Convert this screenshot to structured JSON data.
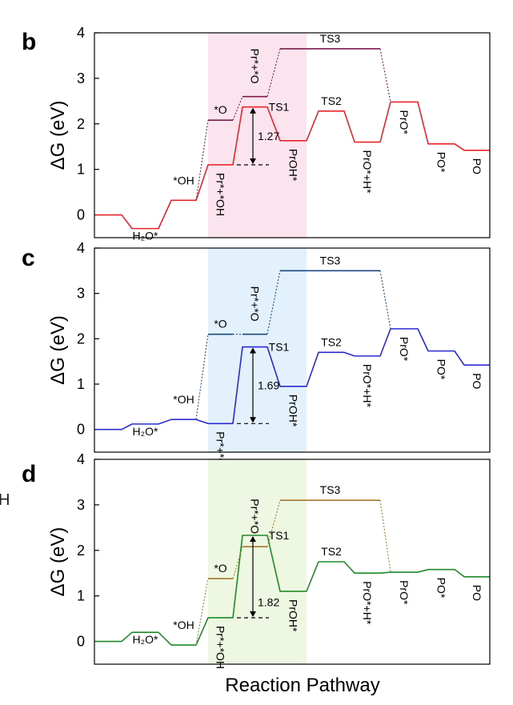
{
  "figure": {
    "x_axis_label": "Reaction Pathway",
    "y_axis_label": "ΔG (eV)",
    "margin_glyph": "H"
  },
  "chart_data": [
    {
      "panel": "b",
      "type": "line",
      "ylim": [
        -0.5,
        4
      ],
      "yticks": [
        0,
        1,
        2,
        3,
        4
      ],
      "highlight_color": "#fce4ef",
      "main_color": "#e8252b",
      "alt_color": "#7a1a4a",
      "main_path": [
        {
          "value": 0,
          "label": ""
        },
        {
          "value": -0.3,
          "label": "H₂O*"
        },
        {
          "value": 0.32,
          "label": "*OH"
        },
        {
          "value": 1.1,
          "label": "Pr*+*OH"
        },
        {
          "value": 2.37,
          "label": "TS1"
        },
        {
          "value": 1.63,
          "label": "PrOH*"
        },
        {
          "value": 2.28,
          "label": "TS2"
        },
        {
          "value": 1.6,
          "label": "PrO*+H*"
        },
        {
          "value": 2.48,
          "label": "PrO*"
        },
        {
          "value": 1.56,
          "label": "PO*"
        },
        {
          "value": 1.42,
          "label": "PO"
        }
      ],
      "alt_path": [
        {
          "value": 2.08,
          "label": "*O"
        },
        {
          "value": 2.6,
          "label": "Pr*+*O"
        },
        {
          "value": 3.65,
          "label": "TS3"
        }
      ],
      "barrier": "1.27"
    },
    {
      "panel": "c",
      "type": "line",
      "ylim": [
        -0.5,
        4
      ],
      "yticks": [
        0,
        1,
        2,
        3,
        4
      ],
      "highlight_color": "#e2f1fb",
      "main_color": "#2b2bd1",
      "alt_color": "#1c4a80",
      "main_path": [
        {
          "value": 0,
          "label": ""
        },
        {
          "value": 0.12,
          "label": "H₂O*"
        },
        {
          "value": 0.22,
          "label": "*OH"
        },
        {
          "value": 0.13,
          "label": "Pr*+*OH"
        },
        {
          "value": 1.82,
          "label": "TS1"
        },
        {
          "value": 0.95,
          "label": "PrOH*"
        },
        {
          "value": 1.7,
          "label": "TS2"
        },
        {
          "value": 1.62,
          "label": "PrO*+H*"
        },
        {
          "value": 2.22,
          "label": "PrO*"
        },
        {
          "value": 1.73,
          "label": "PO*"
        },
        {
          "value": 1.42,
          "label": "PO"
        }
      ],
      "alt_path": [
        {
          "value": 2.1,
          "label": "*O"
        },
        {
          "value": 2.1,
          "label": "Pr*+*O"
        },
        {
          "value": 3.5,
          "label": "TS3"
        }
      ],
      "barrier": "1.69"
    },
    {
      "panel": "d",
      "type": "line",
      "ylim": [
        -0.5,
        4
      ],
      "yticks": [
        0,
        1,
        2,
        3,
        4
      ],
      "highlight_color": "#eef7e2",
      "main_color": "#1f8a2a",
      "alt_color": "#a8782a",
      "main_path": [
        {
          "value": 0,
          "label": ""
        },
        {
          "value": 0.2,
          "label": "H₂O*"
        },
        {
          "value": -0.08,
          "label": "*OH"
        },
        {
          "value": 0.52,
          "label": "Pr*+*OH"
        },
        {
          "value": 2.33,
          "label": "TS1"
        },
        {
          "value": 1.1,
          "label": "PrOH*"
        },
        {
          "value": 1.75,
          "label": "TS2"
        },
        {
          "value": 1.5,
          "label": "PrO*+H*"
        },
        {
          "value": 1.52,
          "label": "PrO*"
        },
        {
          "value": 1.58,
          "label": "PO*"
        },
        {
          "value": 1.42,
          "label": "PO"
        }
      ],
      "alt_path": [
        {
          "value": 1.38,
          "label": "*O"
        },
        {
          "value": 2.08,
          "label": "Pr*+*O"
        },
        {
          "value": 3.1,
          "label": "TS3"
        }
      ],
      "barrier": "1.82"
    }
  ]
}
